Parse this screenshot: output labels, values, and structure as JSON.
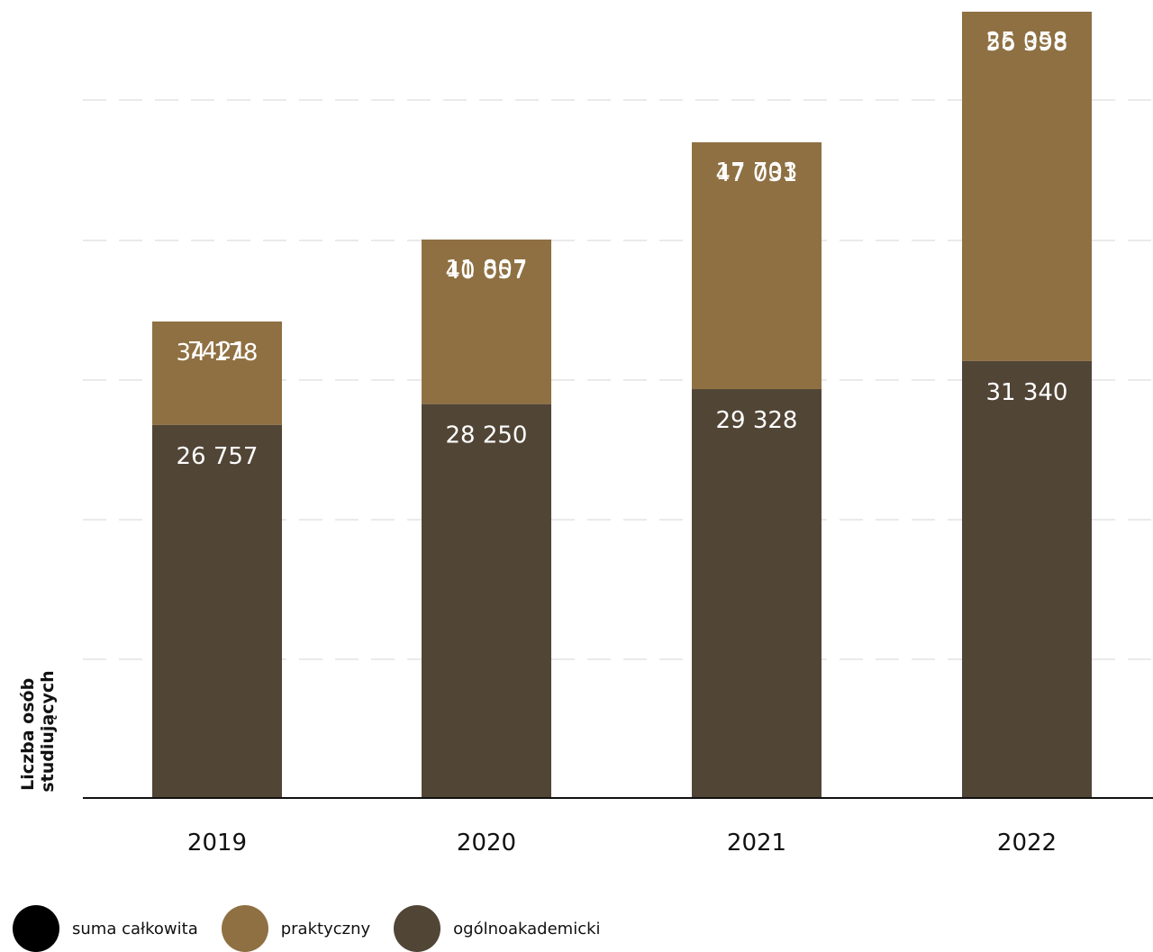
{
  "chart_data": {
    "type": "bar",
    "stacked": true,
    "ylabel": "Liczba osób studiujących",
    "ylim": [
      0,
      56398
    ],
    "grid": true,
    "legend_position": "bottom-left",
    "categories": [
      "2019",
      "2020",
      "2021",
      "2022"
    ],
    "series": [
      {
        "name": "ogólnoakademicki",
        "values": [
          26757,
          28250,
          29328,
          31340
        ],
        "labels": [
          "26 757",
          "28 250",
          "29 328",
          "31 340"
        ],
        "color": "#514536"
      },
      {
        "name": "praktyczny",
        "values": [
          7421,
          11807,
          17703,
          25058
        ],
        "labels": [
          "7421",
          "11 807",
          "17 703",
          "25 058"
        ],
        "color": "#8f7042"
      }
    ],
    "totals": {
      "name": "suma całkowita",
      "values": [
        34178,
        40057,
        47031,
        56398
      ],
      "labels": [
        "34 178",
        "40 057",
        "47 031",
        "56 398"
      ],
      "color": "#000000"
    }
  },
  "legend": [
    {
      "label": "suma całkowita",
      "color": "#000000"
    },
    {
      "label": "praktyczny",
      "color": "#8f7042"
    },
    {
      "label": "ogólnoakademicki",
      "color": "#514536"
    }
  ]
}
